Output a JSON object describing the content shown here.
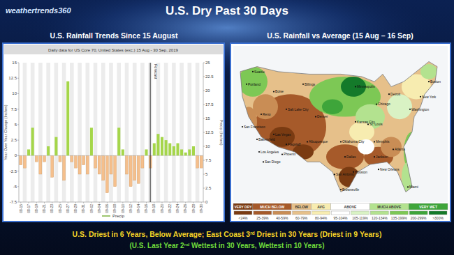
{
  "logo": "weathertrends360",
  "title": "U.S. Dry Past 30 Days",
  "chart_data": {
    "type": "bar",
    "panel_title": "U.S. Rainfall Trends Since 15 August",
    "title": "Daily data for US Core 70, United States (exc.) 15 Aug - 30 Sep, 2019",
    "y_label": "Year Over Year Change (Inches)",
    "y2_label": "Precip (Inches)",
    "categories": [
      "08-15",
      null,
      "08-17",
      null,
      "08-19",
      null,
      "08-21",
      null,
      "08-23",
      null,
      "08-25",
      null,
      "08-27",
      null,
      "08-29",
      null,
      "08-31",
      null,
      "09-02",
      null,
      "09-04",
      null,
      "09-06",
      null,
      "09-08",
      null,
      "09-10",
      null,
      "09-12",
      null,
      "09-14",
      null,
      "09-16",
      null,
      "09-18",
      null,
      "09-20",
      null,
      "09-22",
      null,
      "09-24",
      null,
      "09-26",
      null,
      "09-28",
      null,
      "09-30"
    ],
    "series": [
      {
        "name": "Precip",
        "color": "#7cb342",
        "values": [
          -1.5,
          -2,
          1,
          4.5,
          -1,
          -3,
          -1,
          1.5,
          -3.5,
          3,
          -1,
          -4,
          12,
          -1,
          -2,
          -3,
          -1.5,
          -3,
          4.5,
          -2,
          -3,
          -4,
          -6,
          -3,
          -5,
          4.5,
          1,
          -3,
          -5,
          -4,
          -4.5,
          -2,
          1,
          -2,
          2,
          3.5,
          3,
          2.5,
          2,
          1.5,
          2,
          1,
          0.5,
          1,
          1.5,
          -2,
          -2
        ],
        "colors": [
          "#f5bf8c",
          "#f5bf8c",
          "#a5d64a",
          "#a5d64a",
          "#f5bf8c",
          "#f5bf8c",
          "#f5bf8c",
          "#a5d64a",
          "#f5bf8c",
          "#a5d64a",
          "#f5bf8c",
          "#f5bf8c",
          "#a5d64a",
          "#f5bf8c",
          "#f5bf8c",
          "#f5bf8c",
          "#f5bf8c",
          "#f5bf8c",
          "#a5d64a",
          "#f5bf8c",
          "#f5bf8c",
          "#f5bf8c",
          "#f5bf8c",
          "#f5bf8c",
          "#f5bf8c",
          "#a5d64a",
          "#a5d64a",
          "#f5bf8c",
          "#f5bf8c",
          "#f5bf8c",
          "#f5bf8c",
          "#f5bf8c",
          "#a5d64a",
          "#f5bf8c",
          "#a5d64a",
          "#a5d64a",
          "#a5d64a",
          "#a5d64a",
          "#a5d64a",
          "#a5d64a",
          "#a5d64a",
          "#a5d64a",
          "#a5d64a",
          "#a5d64a",
          "#a5d64a",
          "#f5bf8c",
          "#f5bf8c"
        ]
      }
    ],
    "ylim": [
      -7.5,
      15
    ],
    "yticks": [
      -7.5,
      -5,
      -2.5,
      0,
      2.5,
      5,
      7.5,
      10,
      12.5,
      15
    ],
    "y2lim": [
      0,
      25
    ],
    "y2ticks": [
      0,
      2.5,
      5,
      7.5,
      10,
      12.5,
      15,
      17.5,
      20,
      22.5,
      25
    ],
    "annotations": [
      {
        "label": "Forecast",
        "x": 33
      }
    ],
    "grid": false,
    "legend": "bottom"
  },
  "map": {
    "title": "U.S. Rainfall vs Average (15 Aug – 16 Sep)",
    "cities": [
      "Seattle",
      "Portland",
      "Boise",
      "Reno",
      "San Francisco",
      "Bakersfield",
      "Los Angeles",
      "San Diego",
      "Las Vegas",
      "Phoenix",
      "Flagstaff",
      "Salt Lake City",
      "Denver",
      "Albuquerque",
      "Billings",
      "Minneapolis",
      "Kansas City",
      "Oklahoma City",
      "Dallas",
      "San Antonio",
      "Houston",
      "Brownsville",
      "Chicago",
      "St. Louis",
      "Memphis",
      "Jackson",
      "New Orleans",
      "Atlanta",
      "Miami",
      "Detroit",
      "Washington",
      "New York",
      "Boston"
    ],
    "legend": {
      "groups": [
        "VERY DRY",
        "MUCH BELOW",
        "BELOW",
        "AVG",
        "ABOVE",
        "MUCH ABOVE",
        "VERY WET"
      ],
      "bins": [
        {
          "label": "<24%",
          "color": "#7a3b12"
        },
        {
          "label": "25-39%",
          "color": "#a65a2a"
        },
        {
          "label": "40-59%",
          "color": "#c98d55"
        },
        {
          "label": "60-79%",
          "color": "#e6c08a"
        },
        {
          "label": "80-94%",
          "color": "#f7ecb0"
        },
        {
          "label": "95-104%",
          "color": "#ffffff"
        },
        {
          "label": "105-119%",
          "color": "#d9f2c4"
        },
        {
          "label": "120-134%",
          "color": "#b3e28f"
        },
        {
          "label": "135-199%",
          "color": "#7dc855"
        },
        {
          "label": "200-299%",
          "color": "#3ea53a"
        },
        {
          "label": ">300%",
          "color": "#147a2a"
        }
      ]
    }
  },
  "footer": {
    "line1": [
      "U.S. Driest in 6  Years, Below Average;  East Coast 3",
      "rd",
      " Driest in 30 Years (Driest in 9 Years)"
    ],
    "line2": [
      "(U.S. Last Year 2",
      "nd",
      " Wettest in 30 Years, Wettest in 10 Years)"
    ]
  }
}
